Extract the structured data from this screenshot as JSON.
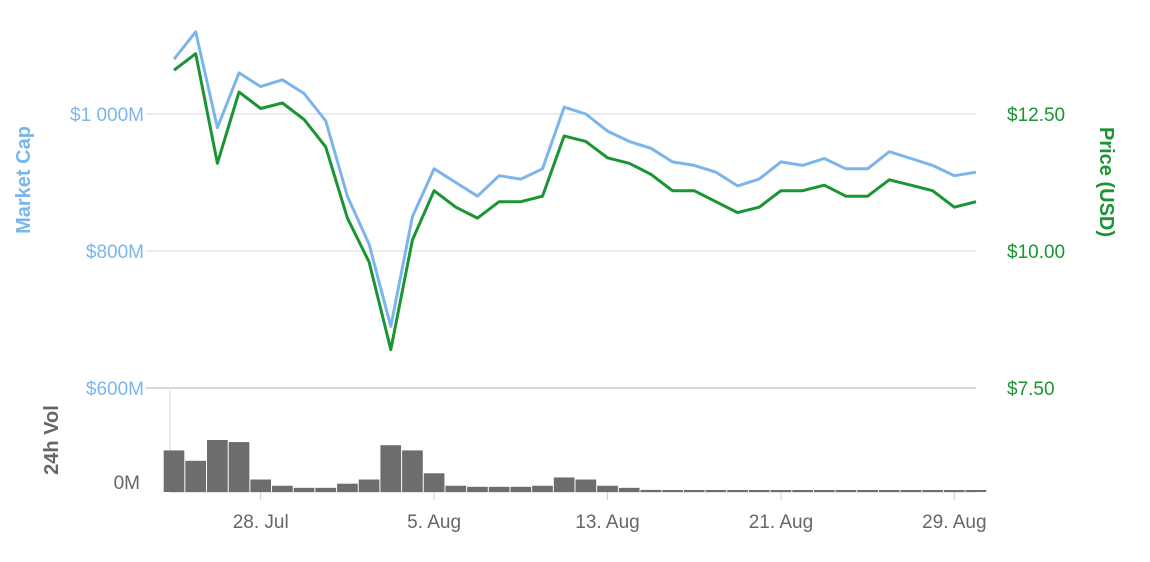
{
  "colors": {
    "market_cap": "#7cb5ec",
    "price": "#1b9433",
    "volume": "#6d6d6d",
    "grid": "#d8d8d8",
    "axis_text": "#666666"
  },
  "chart_data": {
    "type": "line",
    "x_ticks": [
      "28. Jul",
      "5. Aug",
      "13. Aug",
      "21. Aug",
      "29. Aug"
    ],
    "x_range": [
      "2018-07-24",
      "2018-08-30"
    ],
    "left_axis": {
      "title": "Market Cap",
      "ticks": [
        "$1 000M",
        "$800M",
        "$600M"
      ],
      "tick_values": [
        1000,
        800,
        600
      ],
      "range": [
        600,
        1140
      ]
    },
    "right_axis": {
      "title": "Price (USD)",
      "ticks": [
        "$12.50",
        "$10.00",
        "$7.50"
      ],
      "tick_values": [
        12.5,
        10.0,
        7.5
      ],
      "range": [
        7.5,
        14.2
      ]
    },
    "volume_axis": {
      "title": "24h Vol",
      "ticks": [
        "0M"
      ]
    },
    "grid": true,
    "series": [
      {
        "name": "Market Cap",
        "axis": "left",
        "x": [
          "2018-07-24",
          "2018-07-25",
          "2018-07-26",
          "2018-07-27",
          "2018-07-28",
          "2018-07-29",
          "2018-07-30",
          "2018-07-31",
          "2018-08-01",
          "2018-08-02",
          "2018-08-03",
          "2018-08-04",
          "2018-08-05",
          "2018-08-06",
          "2018-08-07",
          "2018-08-08",
          "2018-08-09",
          "2018-08-10",
          "2018-08-11",
          "2018-08-12",
          "2018-08-13",
          "2018-08-14",
          "2018-08-15",
          "2018-08-16",
          "2018-08-17",
          "2018-08-18",
          "2018-08-19",
          "2018-08-20",
          "2018-08-21",
          "2018-08-22",
          "2018-08-23",
          "2018-08-24",
          "2018-08-25",
          "2018-08-26",
          "2018-08-27",
          "2018-08-28",
          "2018-08-29",
          "2018-08-30"
        ],
        "values": [
          1080,
          1120,
          980,
          1060,
          1040,
          1050,
          1030,
          990,
          880,
          810,
          690,
          850,
          920,
          900,
          880,
          910,
          905,
          920,
          1010,
          1000,
          975,
          960,
          950,
          930,
          925,
          915,
          895,
          905,
          930,
          925,
          935,
          920,
          920,
          945,
          935,
          925,
          910,
          915
        ]
      },
      {
        "name": "Price (USD)",
        "axis": "right",
        "x": [
          "2018-07-24",
          "2018-07-25",
          "2018-07-26",
          "2018-07-27",
          "2018-07-28",
          "2018-07-29",
          "2018-07-30",
          "2018-07-31",
          "2018-08-01",
          "2018-08-02",
          "2018-08-03",
          "2018-08-04",
          "2018-08-05",
          "2018-08-06",
          "2018-08-07",
          "2018-08-08",
          "2018-08-09",
          "2018-08-10",
          "2018-08-11",
          "2018-08-12",
          "2018-08-13",
          "2018-08-14",
          "2018-08-15",
          "2018-08-16",
          "2018-08-17",
          "2018-08-18",
          "2018-08-19",
          "2018-08-20",
          "2018-08-21",
          "2018-08-22",
          "2018-08-23",
          "2018-08-24",
          "2018-08-25",
          "2018-08-26",
          "2018-08-27",
          "2018-08-28",
          "2018-08-29",
          "2018-08-30"
        ],
        "values": [
          13.3,
          13.6,
          11.6,
          12.9,
          12.6,
          12.7,
          12.4,
          11.9,
          10.6,
          9.8,
          8.2,
          10.2,
          11.1,
          10.8,
          10.6,
          10.9,
          10.9,
          11.0,
          12.1,
          12.0,
          11.7,
          11.6,
          11.4,
          11.1,
          11.1,
          10.9,
          10.7,
          10.8,
          11.1,
          11.1,
          11.2,
          11.0,
          11.0,
          11.3,
          11.2,
          11.1,
          10.8,
          10.9
        ]
      },
      {
        "name": "24h Vol",
        "axis": "volume",
        "x": [
          "2018-07-24",
          "2018-07-25",
          "2018-07-26",
          "2018-07-27",
          "2018-07-28",
          "2018-07-29",
          "2018-07-30",
          "2018-07-31",
          "2018-08-01",
          "2018-08-02",
          "2018-08-03",
          "2018-08-04",
          "2018-08-05",
          "2018-08-06",
          "2018-08-07",
          "2018-08-08",
          "2018-08-09",
          "2018-08-10",
          "2018-08-11",
          "2018-08-12",
          "2018-08-13",
          "2018-08-14",
          "2018-08-15",
          "2018-08-16",
          "2018-08-17",
          "2018-08-18",
          "2018-08-19",
          "2018-08-20",
          "2018-08-21",
          "2018-08-22",
          "2018-08-23",
          "2018-08-24",
          "2018-08-25",
          "2018-08-26",
          "2018-08-27",
          "2018-08-28",
          "2018-08-29",
          "2018-08-30"
        ],
        "values": [
          40,
          30,
          50,
          48,
          12,
          6,
          4,
          4,
          8,
          12,
          45,
          40,
          18,
          6,
          5,
          5,
          5,
          6,
          14,
          12,
          6,
          4,
          2,
          1,
          1,
          1,
          1,
          1,
          1,
          1,
          1,
          1,
          1,
          1,
          1,
          1,
          1,
          1
        ]
      }
    ]
  }
}
